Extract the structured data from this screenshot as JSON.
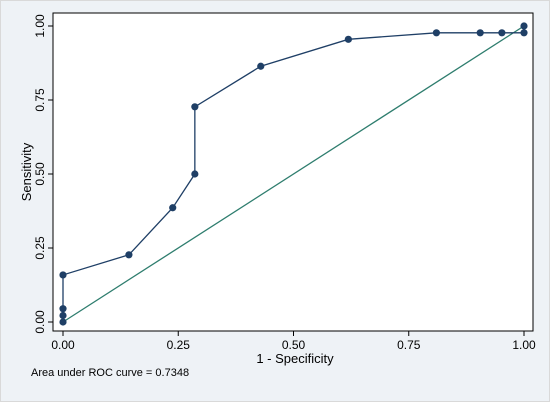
{
  "chart_data": {
    "type": "line",
    "title": "",
    "xlabel": "1 - Specificity",
    "ylabel": "Sensitivity",
    "xlim": [
      0,
      1
    ],
    "ylim": [
      0,
      1
    ],
    "x_ticks": [
      "0.00",
      "0.25",
      "0.50",
      "0.75",
      "1.00"
    ],
    "y_ticks": [
      "0.00",
      "0.25",
      "0.50",
      "0.75",
      "1.00"
    ],
    "grid": false,
    "legend": "none",
    "series": [
      {
        "color": "#1f3f66",
        "markers": true,
        "points": [
          {
            "x": 0.0,
            "y": 0.0
          },
          {
            "x": 0.0,
            "y": 0.022
          },
          {
            "x": 0.0,
            "y": 0.045
          },
          {
            "x": 0.0,
            "y": 0.159
          },
          {
            "x": 0.143,
            "y": 0.227
          },
          {
            "x": 0.238,
            "y": 0.386
          },
          {
            "x": 0.286,
            "y": 0.5
          },
          {
            "x": 0.286,
            "y": 0.727
          },
          {
            "x": 0.429,
            "y": 0.864
          },
          {
            "x": 0.619,
            "y": 0.955
          },
          {
            "x": 0.81,
            "y": 0.977
          },
          {
            "x": 0.905,
            "y": 0.977
          },
          {
            "x": 0.952,
            "y": 0.977
          },
          {
            "x": 1.0,
            "y": 0.977
          },
          {
            "x": 1.0,
            "y": 1.0
          }
        ]
      },
      {
        "color": "#2e7d6e",
        "markers": false,
        "points": [
          {
            "x": 0.0,
            "y": 0.0
          },
          {
            "x": 1.0,
            "y": 1.0
          }
        ]
      }
    ],
    "annotation": "Area under ROC curve = 0.7348",
    "colors": {
      "background": "#eef2f6",
      "plot_area": "#ffffff",
      "roc_curve": "#1f3f66",
      "reference_line": "#2e7d6e"
    }
  }
}
